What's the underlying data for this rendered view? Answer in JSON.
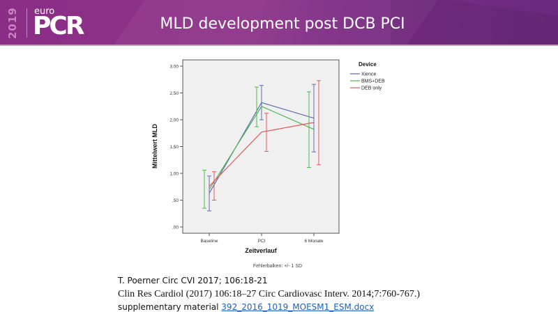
{
  "header": {
    "logo_year": "2019",
    "logo_euro": "euro",
    "logo_brand": "PCR",
    "title": "MLD development post DCB PCI"
  },
  "chart_data": {
    "type": "line",
    "title": "",
    "xlabel": "Zeitverlauf",
    "ylabel": "Mittelwert MLD",
    "categories": [
      "Baseline",
      "PCI",
      "6 Monate"
    ],
    "ylim": [
      0,
      3.0
    ],
    "yticks": [
      0,
      0.5,
      1.0,
      1.5,
      2.0,
      2.5,
      3.0
    ],
    "ytick_labels": [
      ",00",
      ",50",
      "1,00",
      "1,50",
      "2,00",
      "2,50",
      "3,00"
    ],
    "grid": false,
    "legend_title": "Device",
    "legend_position": "right",
    "error_bar_note": "Fehlerbalken: +/- 1 SD",
    "series": [
      {
        "name": "Xience",
        "color": "#5b6bb5",
        "values": [
          0.63,
          2.32,
          2.03
        ],
        "lower": [
          0.3,
          2.0,
          1.4
        ],
        "upper": [
          0.95,
          2.64,
          2.66
        ]
      },
      {
        "name": "BMS+DEB",
        "color": "#4fb84f",
        "values": [
          0.7,
          2.25,
          1.82
        ],
        "lower": [
          0.35,
          1.87,
          1.11
        ],
        "upper": [
          1.06,
          2.61,
          2.52
        ]
      },
      {
        "name": "DEB only",
        "color": "#e05a5a",
        "values": [
          0.76,
          1.77,
          1.95
        ],
        "lower": [
          0.5,
          1.41,
          1.16
        ],
        "upper": [
          1.03,
          2.12,
          2.73
        ]
      }
    ]
  },
  "references": {
    "line1": "T. Poerner Circ CVI 2017; 106:18-21",
    "line2": "Clin Res Cardiol (2017) 106:18–27  Circ Cardiovasc Interv. 2014;7:760-767.)",
    "line3_prefix": "supplementary material ",
    "line3_link": "392_2016_1019_MOESM1_ESM.docx"
  }
}
